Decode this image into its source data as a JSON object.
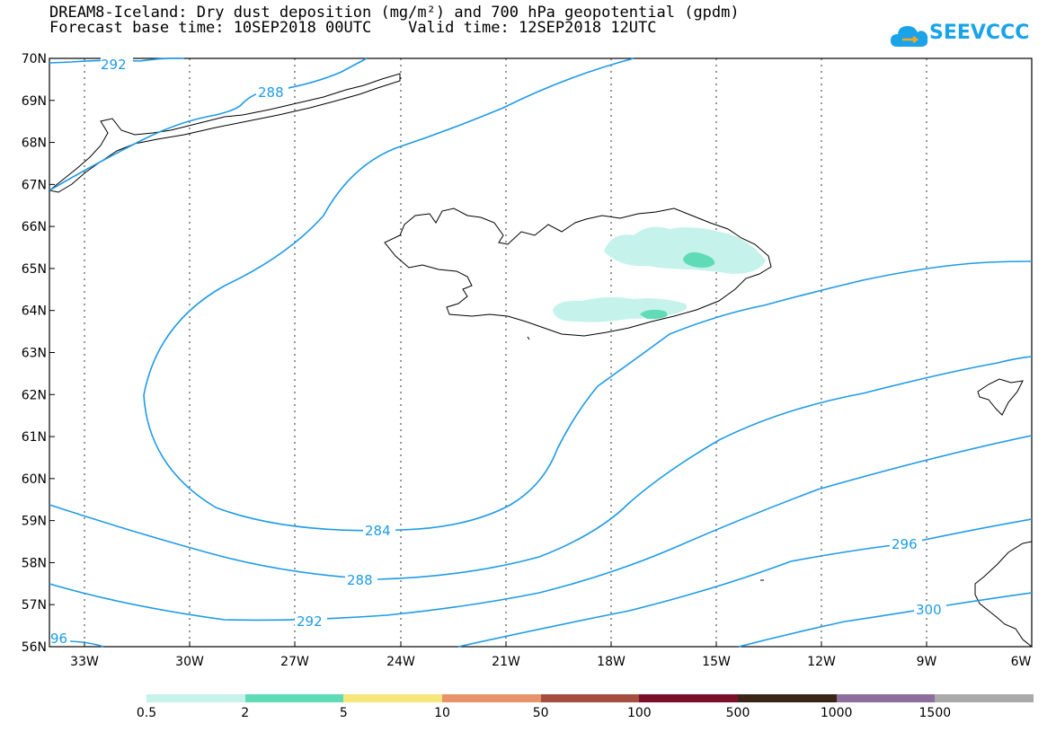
{
  "title_line1": "DREAM8-Iceland: Dry dust deposition (mg/m²) and 700 hPa geopotential (gpdm)",
  "title_line2": "Forecast base time: 10SEP2018 00UTC    Valid time: 12SEP2018 12UTC",
  "logo": {
    "text": "SEEVCCC",
    "icon": "cloud-icon",
    "color": "#1aa3e8"
  },
  "map": {
    "lat_labels": [
      "70N",
      "69N",
      "68N",
      "67N",
      "66N",
      "65N",
      "64N",
      "63N",
      "62N",
      "61N",
      "60N",
      "59N",
      "58N",
      "57N",
      "56N"
    ],
    "lon_labels": [
      "33W",
      "30W",
      "27W",
      "24W",
      "21W",
      "18W",
      "15W",
      "12W",
      "9W",
      "6W"
    ],
    "contour_color": "#1e9be6",
    "contour_labels": [
      "292",
      "288",
      "284",
      "288",
      "292",
      "296",
      "300",
      "96"
    ],
    "dust_colors": {
      "light": "#c6f2ec",
      "medium": "#5fdcb6"
    }
  },
  "colorbar": {
    "colors": [
      "#c6f2ec",
      "#5fdcb6",
      "#f6e77a",
      "#e9936b",
      "#a54d3f",
      "#7b0f2a",
      "#3a2518",
      "#8e6e9b",
      "#aaaaaa"
    ],
    "labels": [
      "0.5",
      "2",
      "5",
      "10",
      "50",
      "100",
      "500",
      "1000",
      "1500"
    ]
  }
}
